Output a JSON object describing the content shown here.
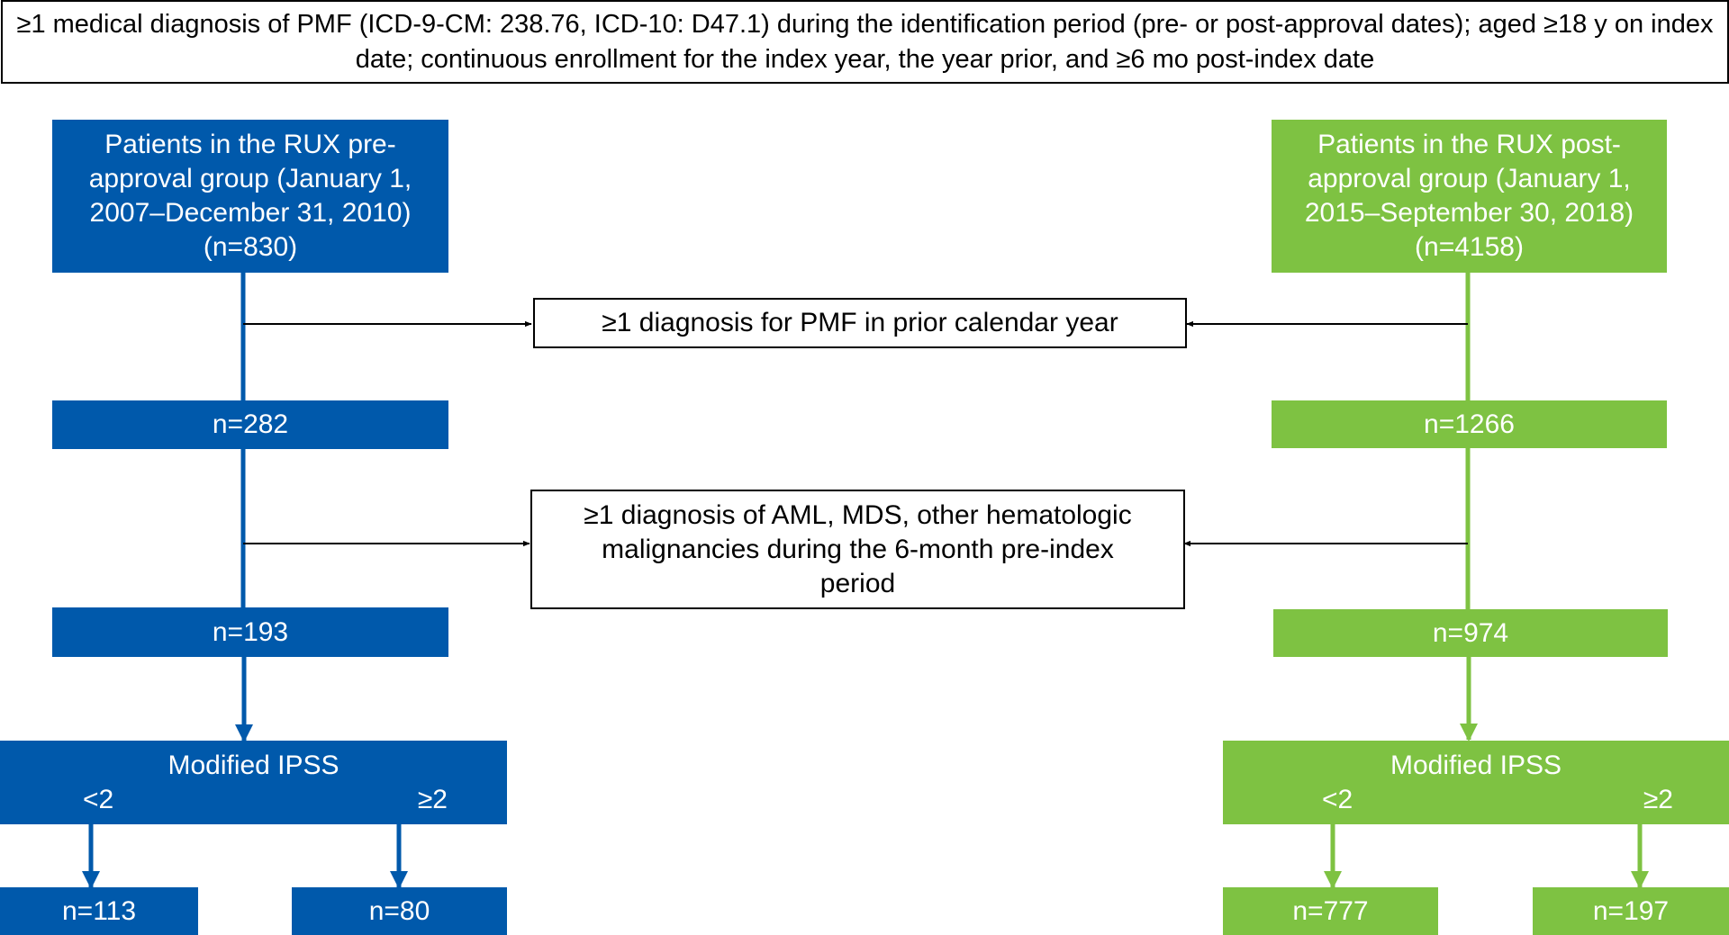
{
  "criteria": {
    "text": "≥1 medical diagnosis of PMF (ICD-9-CM: 238.76, ICD-10: D47.1) during the identification period (pre- or post-approval dates); aged ≥18 y on index date; continuous enrollment for the index year, the year prior, and ≥6 mo post-index date"
  },
  "colors": {
    "blue": "#0059ab",
    "green": "#7ec242",
    "line": "#000000"
  },
  "pre_group": {
    "label": "Patients in the RUX pre-approval group (January 1, 2007–December 31, 2010) (n=830)",
    "n_after_step1": "n=282",
    "n_after_step2": "n=193",
    "ipss_title": "Modified IPSS",
    "ipss_low_label": "<2",
    "ipss_high_label": "≥2",
    "n_low": "n=113",
    "n_high": "n=80"
  },
  "post_group": {
    "label": "Patients in the RUX post-approval group (January 1, 2015–September 30, 2018) (n=4158)",
    "n_after_step1": "n=1266",
    "n_after_step2": "n=974",
    "ipss_title": "Modified IPSS",
    "ipss_low_label": "<2",
    "ipss_high_label": "≥2",
    "n_low": "n=777",
    "n_high": "n=197"
  },
  "exclusions": {
    "step1": "≥1 diagnosis for PMF in prior calendar year",
    "step2": "≥1 diagnosis of AML, MDS, other hematologic malignancies during the 6-month pre-index period"
  }
}
